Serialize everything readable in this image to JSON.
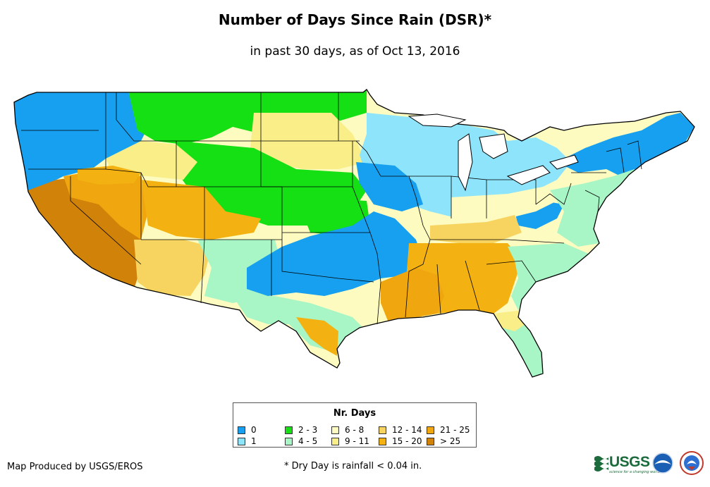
{
  "header": {
    "title": "Number of Days Since Rain (DSR)*",
    "subtitle": "in past 30 days, as of Oct 13, 2016"
  },
  "legend": {
    "title": "Nr. Days",
    "items": [
      {
        "label": "0",
        "color": "#16a0ef"
      },
      {
        "label": "1",
        "color": "#8ee4fb"
      },
      {
        "label": "2 - 3",
        "color": "#14e014"
      },
      {
        "label": "4 - 5",
        "color": "#a8f5c6"
      },
      {
        "label": "6 - 8",
        "color": "#fdfbc0"
      },
      {
        "label": "9 - 11",
        "color": "#f9ee88"
      },
      {
        "label": "12 - 14",
        "color": "#f7d460"
      },
      {
        "label": "15 - 20",
        "color": "#f3b112"
      },
      {
        "label": "21 - 25",
        "color": "#f0a60e"
      },
      {
        "label": "> 25",
        "color": "#d18208"
      }
    ]
  },
  "footer": {
    "credit": "Map Produced by USGS/EROS",
    "footnote": "* Dry Day is rainfall < 0.04 in.",
    "usgs_logo_text": "USGS",
    "usgs_tagline": "science for a changing world",
    "noaa_logo": "noaa-logo-icon",
    "nws_logo": "nws-logo-icon"
  }
}
